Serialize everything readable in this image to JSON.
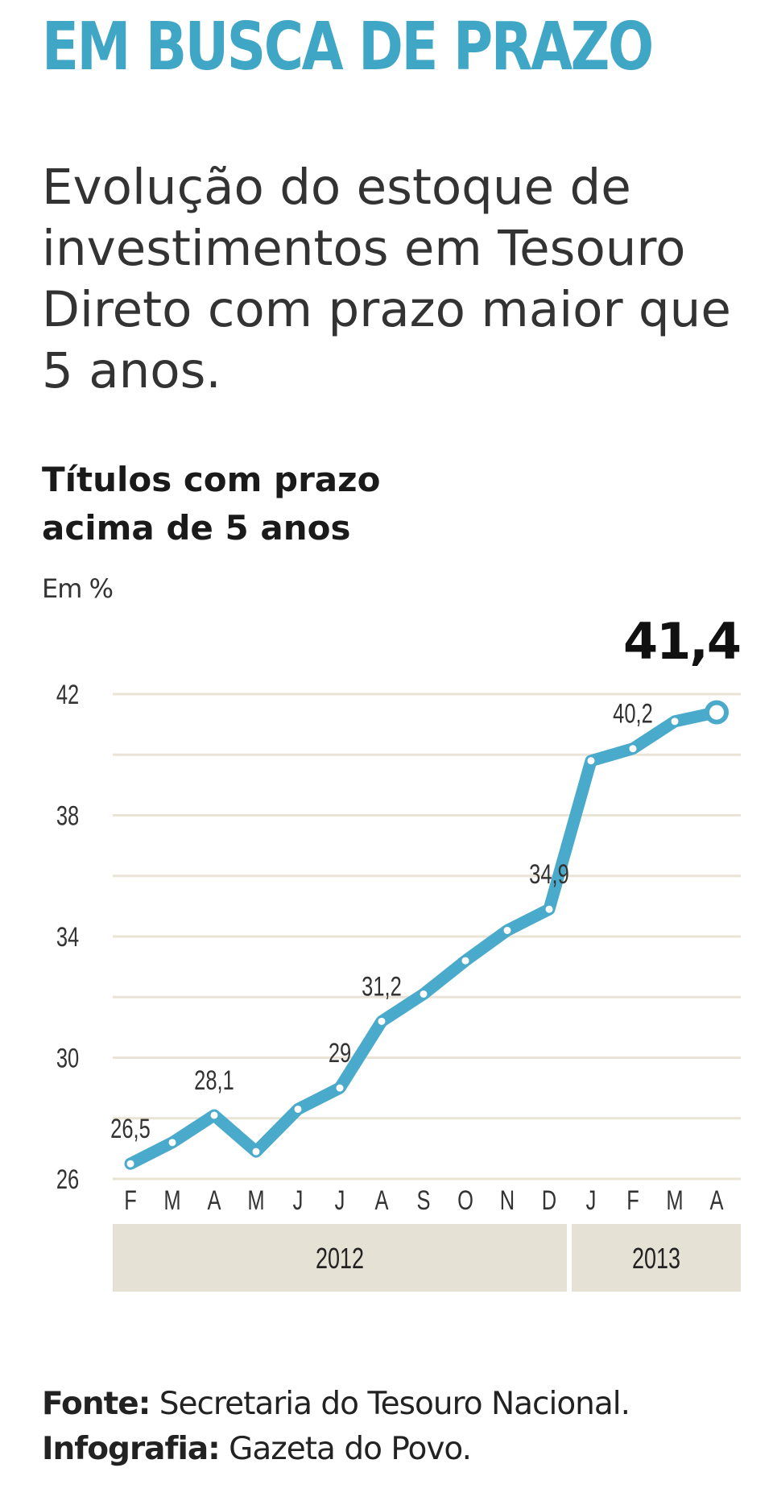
{
  "header": {
    "headline": "EM BUSCA DE PRAZO",
    "subtitle": "Evolução do estoque de investimentos em Tesouro Direto com prazo maior que 5 anos."
  },
  "chart_data": {
    "type": "line",
    "title": "Títulos com prazo acima de 5 anos",
    "title_lines": [
      "Títulos com prazo",
      "acima de 5 anos"
    ],
    "ylabel": "Em %",
    "ylim": [
      26,
      42
    ],
    "yticks": [
      26,
      30,
      34,
      38,
      42
    ],
    "categories": [
      "F",
      "M",
      "A",
      "M",
      "J",
      "J",
      "A",
      "S",
      "O",
      "N",
      "D",
      "J",
      "F",
      "M",
      "A"
    ],
    "year_groups": [
      {
        "label": "2012",
        "start": 0,
        "end": 10
      },
      {
        "label": "2013",
        "start": 11,
        "end": 14
      }
    ],
    "series": [
      {
        "values": [
          26.5,
          27.2,
          28.1,
          26.9,
          28.3,
          29.0,
          31.2,
          32.1,
          33.2,
          34.2,
          34.9,
          39.8,
          40.2,
          41.1,
          41.4
        ]
      }
    ],
    "data_labels": [
      {
        "index": 0,
        "text": "26,5"
      },
      {
        "index": 2,
        "text": "28,1"
      },
      {
        "index": 5,
        "text": "29"
      },
      {
        "index": 6,
        "text": "31,2"
      },
      {
        "index": 10,
        "text": "34,9"
      },
      {
        "index": 12,
        "text": "40,2"
      }
    ],
    "highlight_value": "41,4",
    "grid": true,
    "line_color": "#4aaacb",
    "band_color": "#e6e1d5",
    "grid_color": "#e9e4d6"
  },
  "footer": {
    "source_label": "Fonte:",
    "source_text": " Secretaria do Tesouro Nacional.",
    "credit_label": "Infografia:",
    "credit_text": " Gazeta do Povo."
  }
}
